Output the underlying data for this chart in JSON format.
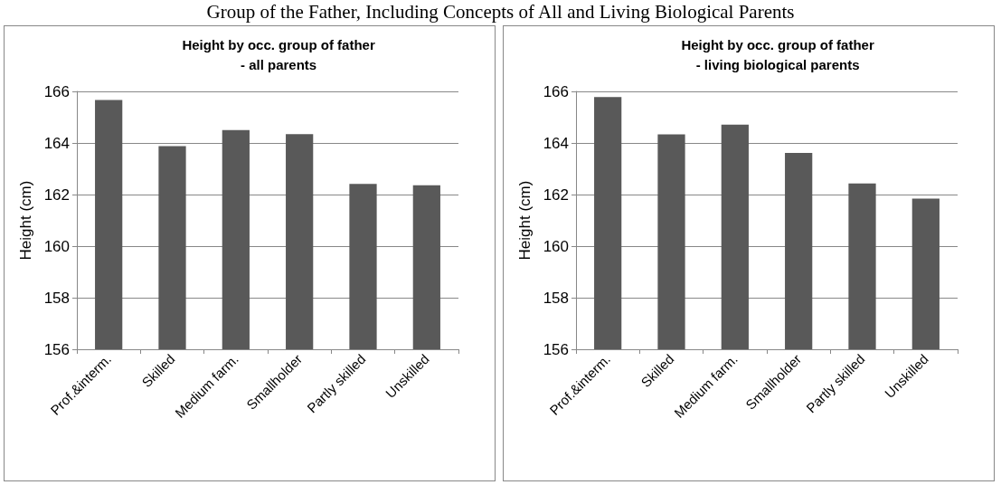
{
  "chart_data": [
    {
      "type": "other",
      "title": "Group of the Father, Including Concepts of All and Living Biological Parents"
    },
    {
      "type": "bar",
      "title": "Height by occ. group of father\n- all parents",
      "ylabel": "Height (cm)",
      "categories": [
        "Prof.&interm.",
        "Skilled",
        "Medium farm.",
        "Smallholder",
        "Partly skilled",
        "Unskilled"
      ],
      "values": [
        165.67,
        163.88,
        164.5,
        164.34,
        162.41,
        162.36
      ],
      "color": "#595959",
      "ylim": [
        156,
        166
      ],
      "yticks": [
        156,
        158,
        160,
        162,
        164,
        166
      ],
      "grid": "y"
    },
    {
      "type": "bar",
      "title": "Height by occ. group of father\n- living biological parents",
      "ylabel": "Height (cm)",
      "categories": [
        "Prof.&interm.",
        "Skilled",
        "Medium farm.",
        "Smallholder",
        "Partly skilled",
        "Unskilled"
      ],
      "values": [
        165.78,
        164.33,
        164.71,
        163.61,
        162.43,
        161.84
      ],
      "color": "#595959",
      "ylim": [
        156,
        166
      ],
      "yticks": [
        156,
        158,
        160,
        162,
        164,
        166
      ],
      "grid": "y"
    }
  ]
}
